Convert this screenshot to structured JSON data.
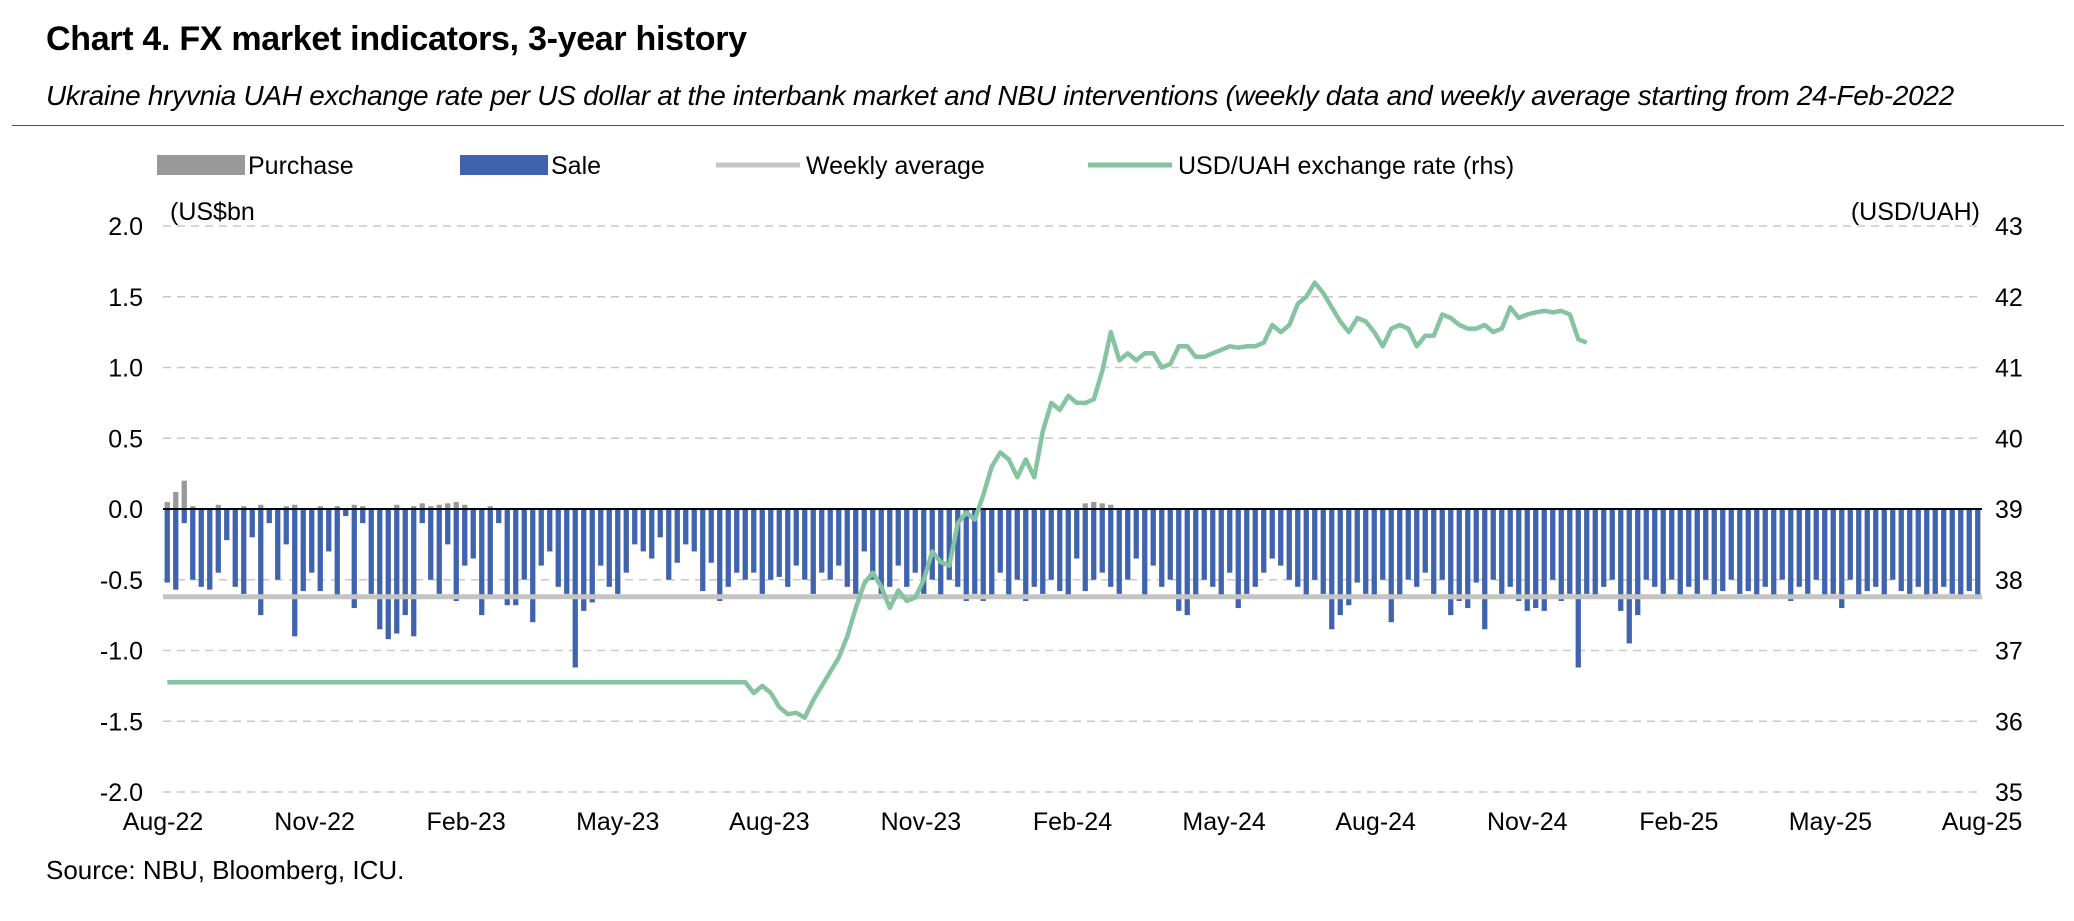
{
  "title": "Chart 4. FX market indicators, 3-year history",
  "subtitle": "Ukraine hryvnia UAH exchange rate per US dollar at the interbank market and NBU interventions (weekly data and weekly average starting from 24-Feb-2022",
  "source": "Source: NBU, Bloomberg, ICU.",
  "colors": {
    "purchase": "#999999",
    "sale": "#3f63ac",
    "average": "#c4c4c4",
    "rate": "#86c3a2",
    "grid": "#c8c8c8",
    "zero": "#000000"
  },
  "chart_data": {
    "type": "bar",
    "legend": [
      "Purchase",
      "Sale",
      "Weekly average",
      "USD/UAH exchange rate (rhs)"
    ],
    "legend_position": "top",
    "grid": true,
    "y_left": {
      "label": "(US$bn",
      "ticks": [
        "2.0",
        "1.5",
        "1.0",
        "0.5",
        "0.0",
        "-0.5",
        "-1.0",
        "-1.5",
        "-2.0"
      ],
      "range": [
        -2.0,
        2.0
      ]
    },
    "y_right": {
      "label": "(USD/UAH)",
      "ticks": [
        "43",
        "42",
        "41",
        "40",
        "39",
        "38",
        "37",
        "36",
        "35"
      ],
      "range": [
        35,
        43
      ]
    },
    "x_ticks": [
      "Aug-22",
      "Nov-22",
      "Feb-23",
      "May-23",
      "Aug-23",
      "Nov-23",
      "Feb-24",
      "May-24",
      "Aug-24",
      "Nov-24",
      "Feb-25",
      "May-25",
      "Aug-25"
    ],
    "weekly_average": -0.62,
    "series": [
      {
        "name": "Sale",
        "kind": "bar",
        "values": [
          -0.52,
          -0.57,
          -0.1,
          -0.5,
          -0.55,
          -0.57,
          -0.45,
          -0.22,
          -0.55,
          -0.6,
          -0.2,
          -0.75,
          -0.1,
          -0.5,
          -0.25,
          -0.9,
          -0.58,
          -0.45,
          -0.58,
          -0.3,
          -0.62,
          -0.05,
          -0.7,
          -0.1,
          -0.6,
          -0.85,
          -0.92,
          -0.88,
          -0.75,
          -0.9,
          -0.1,
          -0.5,
          -0.6,
          -0.25,
          -0.65,
          -0.4,
          -0.35,
          -0.75,
          -0.62,
          -0.1,
          -0.68,
          -0.68,
          -0.5,
          -0.8,
          -0.4,
          -0.3,
          -0.55,
          -0.6,
          -1.12,
          -0.72,
          -0.66,
          -0.4,
          -0.55,
          -0.6,
          -0.45,
          -0.25,
          -0.3,
          -0.35,
          -0.2,
          -0.5,
          -0.38,
          -0.25,
          -0.3,
          -0.58,
          -0.38,
          -0.65,
          -0.55,
          -0.45,
          -0.5,
          -0.45,
          -0.6,
          -0.5,
          -0.48,
          -0.55,
          -0.4,
          -0.5,
          -0.6,
          -0.45,
          -0.5,
          -0.4,
          -0.55,
          -0.6,
          -0.3,
          -0.5,
          -0.6,
          -0.55,
          -0.4,
          -0.55,
          -0.45,
          -0.6,
          -0.5,
          -0.62,
          -0.5,
          -0.55,
          -0.65,
          -0.6,
          -0.65,
          -0.62,
          -0.45,
          -0.62,
          -0.5,
          -0.65,
          -0.55,
          -0.6,
          -0.5,
          -0.58,
          -0.62,
          -0.35,
          -0.58,
          -0.5,
          -0.45,
          -0.55,
          -0.6,
          -0.5,
          -0.35,
          -0.62,
          -0.4,
          -0.55,
          -0.5,
          -0.72,
          -0.75,
          -0.62,
          -0.5,
          -0.55,
          -0.62,
          -0.45,
          -0.7,
          -0.6,
          -0.55,
          -0.45,
          -0.35,
          -0.4,
          -0.5,
          -0.55,
          -0.62,
          -0.5,
          -0.6,
          -0.85,
          -0.75,
          -0.68,
          -0.52,
          -0.6,
          -0.62,
          -0.5,
          -0.8,
          -0.62,
          -0.5,
          -0.55,
          -0.45,
          -0.6,
          -0.5,
          -0.75,
          -0.65,
          -0.7,
          -0.52,
          -0.85,
          -0.5,
          -0.6,
          -0.55,
          -0.65,
          -0.72,
          -0.7,
          -0.72,
          -0.5,
          -0.65,
          -0.6,
          -1.12,
          -0.6,
          -0.62,
          -0.55,
          -0.5,
          -0.72,
          -0.95,
          -0.75,
          -0.5,
          -0.55,
          -0.6,
          -0.5,
          -0.62,
          -0.55,
          -0.6,
          -0.5,
          -0.62,
          -0.58,
          -0.5,
          -0.6,
          -0.58,
          -0.62,
          -0.55,
          -0.62,
          -0.5,
          -0.65,
          -0.55,
          -0.6,
          -0.5,
          -0.62,
          -0.6,
          -0.7,
          -0.5,
          -0.62,
          -0.58,
          -0.55,
          -0.62,
          -0.5,
          -0.58,
          -0.6,
          -0.55,
          -0.62,
          -0.6,
          -0.55,
          -0.6,
          -0.62,
          -0.58,
          -0.62
        ]
      },
      {
        "name": "Purchase",
        "kind": "bar",
        "values": [
          0.05,
          0.12,
          0.2,
          0.02,
          0.0,
          0.0,
          0.03,
          0.0,
          0.0,
          0.02,
          0.0,
          0.03,
          0.0,
          0.0,
          0.02,
          0.03,
          0.0,
          0.0,
          0.02,
          0.0,
          0.02,
          0.0,
          0.03,
          0.02,
          0.0,
          0.0,
          0.0,
          0.03,
          0.0,
          0.02,
          0.04,
          0.02,
          0.03,
          0.04,
          0.05,
          0.03,
          0.0,
          0.0,
          0.02,
          0.0,
          0.0,
          0.0,
          0.0,
          0.0,
          0.0,
          0.0,
          0.0,
          0.0,
          0.0,
          0.0,
          0.0,
          0.0,
          0.0,
          0.0,
          0.0,
          0.0,
          0.0,
          0.0,
          0.0,
          0.0,
          0.0,
          0.0,
          0.0,
          0.0,
          0.0,
          0.0,
          0.0,
          0.0,
          0.0,
          0.0,
          0.0,
          0.0,
          0.0,
          0.0,
          0.0,
          0.0,
          0.0,
          0.0,
          0.0,
          0.0,
          0.0,
          0.0,
          0.0,
          0.0,
          0.0,
          0.0,
          0.0,
          0.0,
          0.0,
          0.0,
          0.0,
          0.0,
          0.0,
          0.0,
          0.0,
          0.0,
          0.0,
          0.0,
          0.0,
          0.0,
          0.0,
          0.0,
          0.0,
          0.0,
          0.0,
          0.0,
          0.0,
          0.0,
          0.04,
          0.05,
          0.04,
          0.03,
          0.0,
          0.0,
          0.0,
          0.0,
          0.0,
          0.0,
          0.0,
          0.0,
          0.0,
          0.0,
          0.0,
          0.0,
          0.0,
          0.0,
          0.0,
          0.0,
          0.0,
          0.0,
          0.0,
          0.0,
          0.0,
          0.0,
          0.0,
          0.0,
          0.0,
          0.0,
          0.0,
          0.0,
          0.0,
          0.0,
          0.0,
          0.0,
          0.0,
          0.0,
          0.0,
          0.0,
          0.0,
          0.0,
          0.0,
          0.0,
          0.0,
          0.0,
          0.0,
          0.0,
          0.0,
          0.0,
          0.0,
          0.0,
          0.0,
          0.0,
          0.0,
          0.0,
          0.0,
          0.0,
          0.0,
          0.0,
          0.0,
          0.0,
          0.0,
          0.0,
          0.0,
          0.0,
          0.0,
          0.0,
          0.0,
          0.0,
          0.0,
          0.0,
          0.0,
          0.0,
          0.0,
          0.0,
          0.0,
          0.0,
          0.0,
          0.0,
          0.0,
          0.0,
          0.0,
          0.0,
          0.0,
          0.0,
          0.0,
          0.0,
          0.0,
          0.0,
          0.0,
          0.0,
          0.0,
          0.0,
          0.0,
          0.0,
          0.0,
          0.0,
          0.0,
          0.0,
          0.0,
          0.0,
          0.0,
          0.0,
          0.0,
          0.0,
          0.0,
          0.0,
          0.0,
          0.0,
          0.0,
          0.0,
          0.0,
          0.0,
          0.0
        ]
      },
      {
        "name": "USD/UAH exchange rate (rhs)",
        "kind": "line",
        "axis": "right",
        "points": [
          [
            0,
            36.55
          ],
          [
            68,
            36.55
          ],
          [
            69,
            36.4
          ],
          [
            70,
            36.5
          ],
          [
            71,
            36.4
          ],
          [
            72,
            36.2
          ],
          [
            73,
            36.1
          ],
          [
            74,
            36.12
          ],
          [
            75,
            36.05
          ],
          [
            76,
            36.3
          ],
          [
            77,
            36.5
          ],
          [
            78,
            36.7
          ],
          [
            79,
            36.9
          ],
          [
            80,
            37.2
          ],
          [
            81,
            37.6
          ],
          [
            82,
            37.95
          ],
          [
            83,
            38.1
          ],
          [
            84,
            37.9
          ],
          [
            85,
            37.6
          ],
          [
            86,
            37.85
          ],
          [
            87,
            37.7
          ],
          [
            88,
            37.75
          ],
          [
            89,
            38.0
          ],
          [
            90,
            38.4
          ],
          [
            91,
            38.25
          ],
          [
            92,
            38.2
          ],
          [
            93,
            38.8
          ],
          [
            94,
            38.95
          ],
          [
            95,
            38.85
          ],
          [
            96,
            39.2
          ],
          [
            97,
            39.6
          ],
          [
            98,
            39.8
          ],
          [
            99,
            39.7
          ],
          [
            100,
            39.45
          ],
          [
            101,
            39.7
          ],
          [
            102,
            39.45
          ],
          [
            103,
            40.1
          ],
          [
            104,
            40.5
          ],
          [
            105,
            40.4
          ],
          [
            106,
            40.6
          ],
          [
            107,
            40.5
          ],
          [
            108,
            40.5
          ],
          [
            109,
            40.55
          ],
          [
            110,
            40.95
          ],
          [
            111,
            41.5
          ],
          [
            112,
            41.1
          ],
          [
            113,
            41.2
          ],
          [
            114,
            41.1
          ],
          [
            115,
            41.2
          ],
          [
            116,
            41.2
          ],
          [
            117,
            41.0
          ],
          [
            118,
            41.05
          ],
          [
            119,
            41.3
          ],
          [
            120,
            41.3
          ],
          [
            121,
            41.15
          ],
          [
            122,
            41.15
          ],
          [
            123,
            41.2
          ],
          [
            124,
            41.25
          ],
          [
            125,
            41.3
          ],
          [
            126,
            41.28
          ],
          [
            127,
            41.3
          ],
          [
            128,
            41.3
          ],
          [
            129,
            41.35
          ],
          [
            130,
            41.6
          ],
          [
            131,
            41.5
          ],
          [
            132,
            41.6
          ],
          [
            133,
            41.9
          ],
          [
            134,
            42.0
          ],
          [
            135,
            42.2
          ],
          [
            136,
            42.05
          ],
          [
            137,
            41.85
          ],
          [
            138,
            41.65
          ],
          [
            139,
            41.5
          ],
          [
            140,
            41.7
          ],
          [
            141,
            41.65
          ],
          [
            142,
            41.5
          ],
          [
            143,
            41.3
          ],
          [
            144,
            41.55
          ],
          [
            145,
            41.6
          ],
          [
            146,
            41.55
          ],
          [
            147,
            41.3
          ],
          [
            148,
            41.45
          ],
          [
            149,
            41.45
          ],
          [
            150,
            41.75
          ],
          [
            151,
            41.7
          ],
          [
            152,
            41.6
          ],
          [
            153,
            41.55
          ],
          [
            154,
            41.55
          ],
          [
            155,
            41.6
          ],
          [
            156,
            41.5
          ],
          [
            157,
            41.55
          ],
          [
            158,
            41.85
          ],
          [
            159,
            41.7
          ],
          [
            160,
            41.75
          ],
          [
            161,
            41.78
          ],
          [
            162,
            41.8
          ],
          [
            163,
            41.78
          ],
          [
            164,
            41.8
          ],
          [
            165,
            41.75
          ],
          [
            166,
            41.4
          ],
          [
            167,
            41.35
          ]
        ]
      }
    ]
  }
}
